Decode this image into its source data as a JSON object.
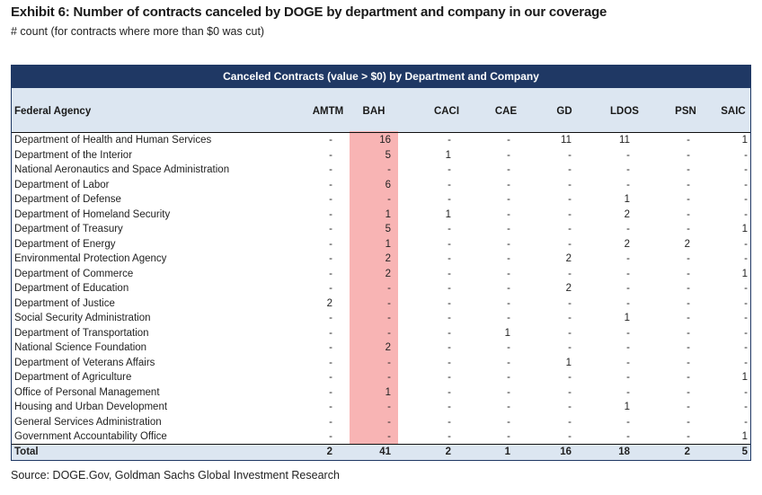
{
  "title": "Exhibit 6: Number of contracts canceled by DOGE by department and company in our coverage",
  "subtitle": "# count (for contracts where more than $0 was cut)",
  "source": "Source: DOGE.Gov, Goldman Sachs Global Investment Research",
  "highlight_color": "#f8b4b4",
  "header_color": "#1f3864",
  "chart_data": {
    "type": "table",
    "title": "Canceled Contracts (value > $0) by Department and Company",
    "row_header": "Federal Agency",
    "columns": [
      "AMTM",
      "BAH",
      "CACI",
      "CAE",
      "GD",
      "LDOS",
      "PSN",
      "SAIC"
    ],
    "highlighted_column": "BAH",
    "rows": [
      {
        "agency": "Department of Health and Human Services",
        "values": [
          "-",
          "16",
          "-",
          "-",
          "11",
          "11",
          "-",
          "1"
        ]
      },
      {
        "agency": "Department of the Interior",
        "values": [
          "-",
          "5",
          "1",
          "-",
          "-",
          "-",
          "-",
          "-"
        ]
      },
      {
        "agency": "National Aeronautics and Space Administration",
        "values": [
          "-",
          "-",
          "-",
          "-",
          "-",
          "-",
          "-",
          "-"
        ]
      },
      {
        "agency": "Department of Labor",
        "values": [
          "-",
          "6",
          "-",
          "-",
          "-",
          "-",
          "-",
          "-"
        ]
      },
      {
        "agency": "Department of Defense",
        "values": [
          "-",
          "-",
          "-",
          "-",
          "-",
          "1",
          "-",
          "-"
        ]
      },
      {
        "agency": "Department of Homeland Security",
        "values": [
          "-",
          "1",
          "1",
          "-",
          "-",
          "2",
          "-",
          "-"
        ]
      },
      {
        "agency": "Department of Treasury",
        "values": [
          "-",
          "5",
          "-",
          "-",
          "-",
          "-",
          "-",
          "1"
        ]
      },
      {
        "agency": "Department of Energy",
        "values": [
          "-",
          "1",
          "-",
          "-",
          "-",
          "2",
          "2",
          "-"
        ]
      },
      {
        "agency": "Environmental Protection Agency",
        "values": [
          "-",
          "2",
          "-",
          "-",
          "2",
          "-",
          "-",
          "-"
        ]
      },
      {
        "agency": "Department of Commerce",
        "values": [
          "-",
          "2",
          "-",
          "-",
          "-",
          "-",
          "-",
          "1"
        ]
      },
      {
        "agency": "Department of Education",
        "values": [
          "-",
          "-",
          "-",
          "-",
          "2",
          "-",
          "-",
          "-"
        ]
      },
      {
        "agency": "Department of Justice",
        "values": [
          "2",
          "-",
          "-",
          "-",
          "-",
          "-",
          "-",
          "-"
        ]
      },
      {
        "agency": "Social Security Administration",
        "values": [
          "-",
          "-",
          "-",
          "-",
          "-",
          "1",
          "-",
          "-"
        ]
      },
      {
        "agency": "Department of Transportation",
        "values": [
          "-",
          "-",
          "-",
          "1",
          "-",
          "-",
          "-",
          "-"
        ]
      },
      {
        "agency": "National Science Foundation",
        "values": [
          "-",
          "2",
          "-",
          "-",
          "-",
          "-",
          "-",
          "-"
        ]
      },
      {
        "agency": "Department of Veterans Affairs",
        "values": [
          "-",
          "-",
          "-",
          "-",
          "1",
          "-",
          "-",
          "-"
        ]
      },
      {
        "agency": "Department of Agriculture",
        "values": [
          "-",
          "-",
          "-",
          "-",
          "-",
          "-",
          "-",
          "1"
        ]
      },
      {
        "agency": "Office of Personal Management",
        "values": [
          "-",
          "1",
          "-",
          "-",
          "-",
          "-",
          "-",
          "-"
        ]
      },
      {
        "agency": "Housing and Urban Development",
        "values": [
          "-",
          "-",
          "-",
          "-",
          "-",
          "1",
          "-",
          "-"
        ]
      },
      {
        "agency": "General Services Administration",
        "values": [
          "-",
          "-",
          "-",
          "-",
          "-",
          "-",
          "-",
          "-"
        ]
      },
      {
        "agency": "Government Accountability Office",
        "values": [
          "-",
          "-",
          "-",
          "-",
          "-",
          "-",
          "-",
          "1"
        ]
      }
    ],
    "total": {
      "label": "Total",
      "values": [
        "2",
        "41",
        "2",
        "1",
        "16",
        "18",
        "2",
        "5"
      ]
    }
  }
}
